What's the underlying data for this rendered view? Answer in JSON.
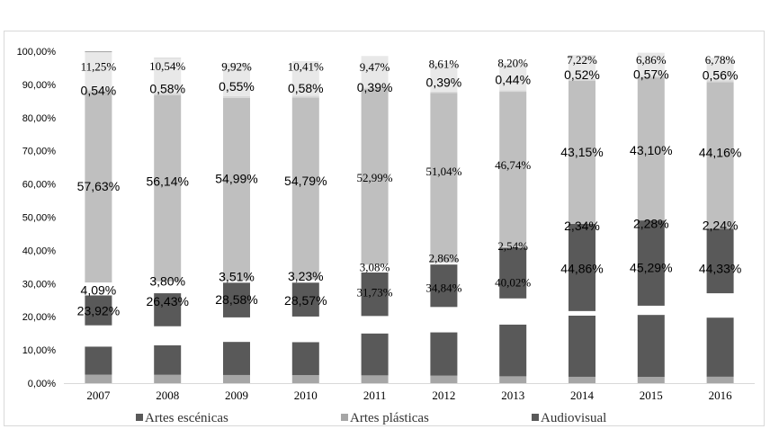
{
  "chart_data": {
    "type": "bar",
    "stacked": true,
    "percent_stacked": true,
    "categories": [
      "2007",
      "2008",
      "2009",
      "2010",
      "2011",
      "2012",
      "2013",
      "2014",
      "2015",
      "2016"
    ],
    "series": [
      {
        "name": "",
        "color": "#a6a6a6",
        "values": [
          2.56,
          2.51,
          2.45,
          2.42,
          2.34,
          2.26,
          2.06,
          1.91,
          1.9,
          1.93
        ]
      },
      {
        "name": "",
        "color": "#595959",
        "values": [
          8.46,
          8.9,
          9.99,
          9.94,
          12.64,
          13.04,
          15.6,
          18.44,
          18.67,
          17.82
        ]
      },
      {
        "name": "",
        "color": "#ffffff",
        "values": [
          6.4,
          5.73,
          7.37,
          7.71,
          5.25,
          7.65,
          7.87,
          1.37,
          2.76,
          7.33
        ]
      },
      {
        "name": "",
        "color": "#595959",
        "values": [
          9.03,
          9.95,
          10.48,
          10.23,
          13.12,
          12.8,
          15.33,
          26.27,
          25.69,
          19.47
        ]
      },
      {
        "name": "",
        "color": "#ffffff",
        "values": [
          3.88,
          3.57,
          0.69,
          0.94,
          2.37,
          0.66,
          0.19,
          0.0,
          0.0,
          0.0
        ]
      },
      {
        "name": "",
        "color": "#bfbfbf",
        "values": [
          57.63,
          56.14,
          54.99,
          54.79,
          52.99,
          51.04,
          46.74,
          43.15,
          43.1,
          44.16
        ]
      },
      {
        "name": "",
        "color": "#d9d9d9",
        "values": [
          0.54,
          0.58,
          0.55,
          0.58,
          0.39,
          0.39,
          0.44,
          0.52,
          0.57,
          0.56
        ]
      },
      {
        "name": "",
        "color": "#e8e8e8",
        "values": [
          11.25,
          10.54,
          9.92,
          10.41,
          9.47,
          8.61,
          8.2,
          7.22,
          6.86,
          6.78
        ]
      },
      {
        "name": "",
        "color": "#9c9c9c",
        "values": [
          0.25,
          0.08,
          0.0,
          0.0,
          0.0,
          0.0,
          0.0,
          0.0,
          0.0,
          0.0
        ]
      }
    ],
    "data_labels": {
      "row1": [
        "23,92%",
        "26,43%",
        "28,58%",
        "28,57%",
        "31,73%",
        "34,84%",
        "40,02%",
        "44,86%",
        "45,29%",
        "44,33%"
      ],
      "row2": [
        "4,09%",
        "3,80%",
        "3,51%",
        "3,23%",
        "3,08%",
        "2,86%",
        "2,54%",
        "2,34%",
        "2,28%",
        "2,24%"
      ],
      "row3": [
        "57,63%",
        "56,14%",
        "54,99%",
        "54,79%",
        "52,99%",
        "51,04%",
        "46,74%",
        "43,15%",
        "43,10%",
        "44,16%"
      ],
      "row4": [
        "0,54%",
        "0,58%",
        "0,55%",
        "0,58%",
        "0,39%",
        "0,39%",
        "0,44%",
        "0,52%",
        "0,57%",
        "0,56%"
      ],
      "row5": [
        "11,25%",
        "10,54%",
        "9,92%",
        "10,41%",
        "9,47%",
        "8,61%",
        "8,20%",
        "7,22%",
        "6,86%",
        "6,78%"
      ]
    },
    "label_positions": {
      "row1": [
        21.8,
        24.6,
        25.2,
        24.9,
        27.5,
        28.9,
        30.5,
        34.6,
        34.8,
        34.6
      ],
      "row2": [
        28.0,
        30.7,
        32.1,
        32.3,
        35.1,
        37.8,
        41.5,
        47.4,
        48.1,
        47.6
      ],
      "row3": [
        59.3,
        60.8,
        61.6,
        61.0,
        62.1,
        64.0,
        65.9,
        69.6,
        70.2,
        69.5
      ],
      "row4": [
        88.2,
        88.8,
        89.4,
        88.9,
        89.2,
        90.6,
        91.4,
        93.0,
        93.1,
        92.8
      ],
      "row5": [
        95.5,
        95.6,
        95.5,
        95.5,
        95.4,
        96.3,
        96.6,
        97.6,
        97.6,
        97.6
      ]
    },
    "legend": [
      "Artes escénicas",
      "Artes plásticas",
      "Audiovisual"
    ],
    "legend_colors": [
      "#595959",
      "#a6a6a6",
      "#595959"
    ],
    "y_ticks": [
      "0,00%",
      "10,00%",
      "20,00%",
      "30,00%",
      "40,00%",
      "50,00%",
      "60,00%",
      "70,00%",
      "80,00%",
      "90,00%",
      "100,00%"
    ],
    "ylim": [
      0,
      100
    ],
    "grid": false,
    "legend_position": "bottom",
    "title": "",
    "xlabel": "",
    "ylabel": ""
  }
}
